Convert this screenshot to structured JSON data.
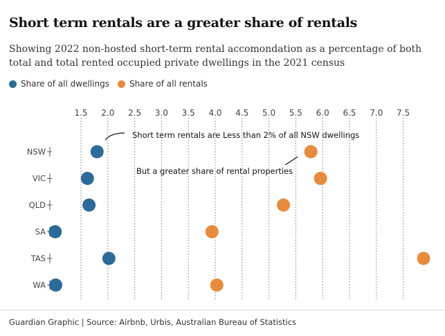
{
  "chart_data": {
    "type": "scatter",
    "title": "Short term rentals are a greater share of rentals",
    "subtitle": "Showing 2022 non-hosted short-term rental accomondation as a percentage of both total and total rented occupied private dwellings in the 2021 census",
    "categories": [
      "NSW",
      "VIC",
      "QLD",
      "SA",
      "TAS",
      "WA"
    ],
    "x_ticks": [
      "1.5",
      "2.0",
      "2.5",
      "3.0",
      "3.5",
      "4.0",
      "4.5",
      "5.0",
      "5.5",
      "6.0",
      "6.5",
      "7.0",
      "7.5"
    ],
    "x_tick_values": [
      1.5,
      2.0,
      2.5,
      3.0,
      3.5,
      4.0,
      4.5,
      5.0,
      5.5,
      6.0,
      6.5,
      7.0,
      7.5
    ],
    "xlim": [
      1.0,
      8.0
    ],
    "grid": true,
    "legend_position": "top-left",
    "series": [
      {
        "name": "Share of all dwellings",
        "color": "#2b6b99",
        "values": [
          1.8,
          1.62,
          1.65,
          1.02,
          2.02,
          1.03
        ]
      },
      {
        "name": "Share of all rentals",
        "color": "#e98b3a",
        "values": [
          5.78,
          5.96,
          5.27,
          3.94,
          7.88,
          4.03
        ]
      }
    ],
    "annotations": [
      {
        "text": "Short term rentals are Less than 2% of all NSW dwellings"
      },
      {
        "text": "But a greater share of rental properties"
      }
    ]
  },
  "footer": "Guardian Graphic | Source: Airbnb, Urbis, Australian Bureau of Statistics"
}
